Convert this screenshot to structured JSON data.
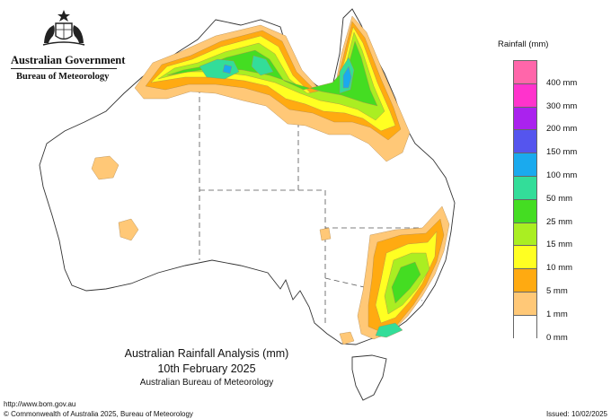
{
  "header": {
    "government": "Australian Government",
    "bureau": "Bureau of Meteorology"
  },
  "map": {
    "title": "Australian Rainfall Analysis (mm)",
    "date": "10th February 2025",
    "credit": "Australian Bureau of Meteorology"
  },
  "legend": {
    "title": "Rainfall (mm)",
    "entries": [
      {
        "label": "",
        "color": "#ff66aa"
      },
      {
        "label": "400 mm",
        "color": "#ff33cc"
      },
      {
        "label": "300 mm",
        "color": "#aa22ee"
      },
      {
        "label": "200 mm",
        "color": "#5555ee"
      },
      {
        "label": "150 mm",
        "color": "#1aaaee"
      },
      {
        "label": "100 mm",
        "color": "#33dd99"
      },
      {
        "label": "50 mm",
        "color": "#44dd22"
      },
      {
        "label": "25 mm",
        "color": "#aaee22"
      },
      {
        "label": "15 mm",
        "color": "#ffff22"
      },
      {
        "label": "10 mm",
        "color": "#ffaa11"
      },
      {
        "label": "5 mm",
        "color": "#ffc877"
      },
      {
        "label": "1 mm",
        "color": "#ffffff"
      },
      {
        "label": "0 mm",
        "color": ""
      }
    ]
  },
  "footer": {
    "url": "http://www.bom.gov.au",
    "copyright": "© Commonwealth of Australia 2025, Bureau of Meteorology",
    "issued": "Issued: 10/02/2025"
  }
}
